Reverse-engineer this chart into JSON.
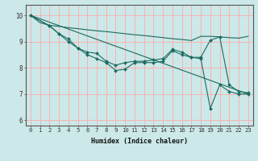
{
  "xlabel": "Humidex (Indice chaleur)",
  "bg_color": "#cce8e8",
  "grid_color": "#ffaaaa",
  "line_color": "#1a6b60",
  "xlim": [
    -0.5,
    23.5
  ],
  "ylim": [
    5.8,
    10.4
  ],
  "yticks": [
    6,
    7,
    8,
    9,
    10
  ],
  "xticks": [
    0,
    1,
    2,
    3,
    4,
    5,
    6,
    7,
    8,
    9,
    10,
    11,
    12,
    13,
    14,
    15,
    16,
    17,
    18,
    19,
    20,
    21,
    22,
    23
  ],
  "series": [
    {
      "x": [
        0,
        1,
        2,
        3,
        4,
        5,
        6,
        7,
        8,
        9,
        10,
        11,
        12,
        13,
        14,
        15,
        16,
        17,
        18,
        19,
        20,
        21,
        22,
        23
      ],
      "y": [
        10.0,
        9.72,
        9.62,
        9.58,
        9.53,
        9.49,
        9.45,
        9.41,
        9.38,
        9.34,
        9.3,
        9.26,
        9.23,
        9.19,
        9.15,
        9.11,
        9.08,
        9.04,
        9.2,
        9.2,
        9.18,
        9.15,
        9.13,
        9.2
      ],
      "markers": false
    },
    {
      "x": [
        0,
        2,
        3,
        4,
        5,
        6,
        7,
        8,
        9,
        10,
        11,
        12,
        13,
        14,
        15,
        16,
        17,
        18,
        19,
        20,
        21,
        22,
        23
      ],
      "y": [
        10.0,
        9.6,
        9.3,
        9.1,
        8.75,
        8.6,
        8.55,
        8.25,
        8.1,
        8.2,
        8.25,
        8.25,
        8.3,
        8.35,
        8.7,
        8.6,
        8.4,
        8.4,
        9.05,
        9.18,
        7.35,
        7.1,
        7.05
      ],
      "markers": true
    },
    {
      "x": [
        0,
        2,
        3,
        4,
        5,
        6,
        7,
        8,
        9,
        10,
        11,
        12,
        13,
        14,
        15,
        16,
        17,
        18,
        19,
        20,
        21,
        22,
        23
      ],
      "y": [
        10.0,
        9.6,
        9.3,
        9.0,
        8.75,
        8.5,
        8.35,
        8.2,
        7.9,
        7.95,
        8.2,
        8.2,
        8.2,
        8.25,
        8.65,
        8.5,
        8.4,
        8.35,
        6.45,
        7.35,
        7.1,
        7.0,
        7.0
      ],
      "markers": true
    },
    {
      "x": [
        0,
        23
      ],
      "y": [
        10.0,
        7.0
      ],
      "markers": false
    }
  ]
}
